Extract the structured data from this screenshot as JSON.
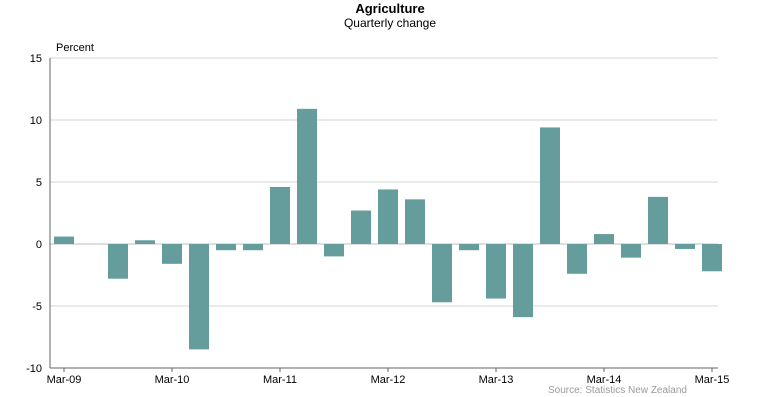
{
  "chart_data": {
    "type": "bar",
    "title": "Agriculture",
    "subtitle": "Quarterly change",
    "ylabel": "Percent",
    "source": "Source: Statistics New Zealand",
    "ylim": [
      -10,
      15
    ],
    "yticks": [
      -10,
      -5,
      0,
      5,
      10,
      15
    ],
    "grid": true,
    "bar_color": "#649d9b",
    "x_tick_labels": [
      "Mar-09",
      "Mar-10",
      "Mar-11",
      "Mar-12",
      "Mar-13",
      "Mar-14",
      "Mar-15"
    ],
    "categories": [
      "Mar-09",
      "Jun-09",
      "Sep-09",
      "Dec-09",
      "Mar-10",
      "Jun-10",
      "Sep-10",
      "Dec-10",
      "Mar-11",
      "Jun-11",
      "Sep-11",
      "Dec-11",
      "Mar-12",
      "Jun-12",
      "Sep-12",
      "Dec-12",
      "Mar-13",
      "Jun-13",
      "Sep-13",
      "Dec-13",
      "Mar-14",
      "Jun-14",
      "Sep-14",
      "Dec-14",
      "Mar-15"
    ],
    "values": [
      0.6,
      0.0,
      -2.8,
      0.3,
      -1.6,
      -8.5,
      -0.5,
      -0.5,
      4.6,
      10.9,
      -1.0,
      2.7,
      4.4,
      3.6,
      -4.7,
      -0.5,
      -4.4,
      -5.9,
      9.4,
      -2.4,
      0.8,
      -1.1,
      3.8,
      -0.4,
      -2.2
    ]
  }
}
